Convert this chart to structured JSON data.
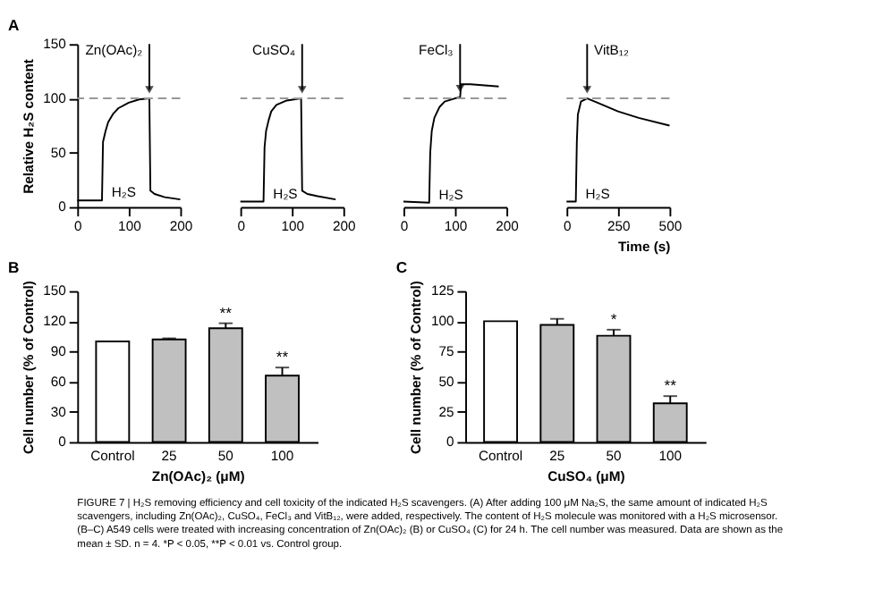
{
  "chart_data": [
    {
      "type": "line",
      "title": "A",
      "ylabel": "Relative H₂S content",
      "xlim": [
        0,
        200
      ],
      "xticks": [
        0,
        100,
        200
      ],
      "ylim": [
        0,
        150
      ],
      "yticks": [
        0,
        50,
        100,
        150
      ],
      "grid": false,
      "line_style": "solid",
      "marker": "none",
      "series": [
        {
          "color": "#000000",
          "x": [
            0,
            48,
            50,
            55,
            60,
            70,
            80,
            100,
            120,
            140,
            142,
            150,
            170,
            200
          ],
          "values": [
            6,
            6,
            60,
            70,
            78,
            86,
            91,
            96,
            99,
            100,
            15,
            12,
            9,
            7
          ]
        }
      ],
      "ref_lines": [
        {
          "axis": "y",
          "value": 100,
          "color": "#999999",
          "line_style": "dashed"
        }
      ],
      "annotations": [
        {
          "text": "Zn(OAc)₂",
          "x": 140,
          "y": 100
        },
        {
          "text": "H₂S",
          "x": 50,
          "y": 6
        }
      ]
    },
    {
      "type": "line",
      "xlim": [
        0,
        200
      ],
      "xticks": [
        0,
        100,
        200
      ],
      "ylim": [
        0,
        150
      ],
      "tick_labels": "x",
      "grid": false,
      "line_style": "solid",
      "marker": "none",
      "series": [
        {
          "color": "#000000",
          "x": [
            0,
            45,
            47,
            50,
            55,
            60,
            70,
            90,
            118,
            120,
            130,
            150,
            185
          ],
          "values": [
            5,
            5,
            55,
            70,
            80,
            88,
            94,
            98,
            100,
            15,
            12,
            10,
            7
          ]
        }
      ],
      "ref_lines": [
        {
          "axis": "y",
          "value": 100,
          "color": "#999999",
          "line_style": "dashed"
        }
      ],
      "annotations": [
        {
          "text": "CuSO₄",
          "x": 120,
          "y": 100
        },
        {
          "text": "H₂S",
          "x": 47,
          "y": 5
        }
      ]
    },
    {
      "type": "line",
      "xlim": [
        0,
        200
      ],
      "xticks": [
        0,
        100,
        200
      ],
      "ylim": [
        0,
        150
      ],
      "tick_labels": "x",
      "grid": false,
      "line_style": "solid",
      "marker": "none",
      "series": [
        {
          "color": "#000000",
          "x": [
            0,
            50,
            52,
            55,
            60,
            70,
            80,
            100,
            110,
            112,
            130,
            185
          ],
          "values": [
            5,
            4,
            50,
            70,
            82,
            92,
            97,
            100,
            101,
            113,
            113,
            111
          ]
        }
      ],
      "ref_lines": [
        {
          "axis": "y",
          "value": 100,
          "color": "#999999",
          "line_style": "dashed"
        }
      ],
      "annotations": [
        {
          "text": "FeCl₃",
          "x": 110,
          "y": 101
        },
        {
          "text": "H₂S",
          "x": 52,
          "y": 4
        }
      ]
    },
    {
      "type": "line",
      "xlabel": "Time (s)",
      "xlim": [
        0,
        500
      ],
      "xticks": [
        0,
        250,
        500
      ],
      "ylim": [
        0,
        150
      ],
      "tick_labels": "x",
      "grid": false,
      "line_style": "solid",
      "marker": "none",
      "series": [
        {
          "color": "#000000",
          "x": [
            0,
            45,
            50,
            55,
            70,
            100,
            150,
            250,
            350,
            500
          ],
          "values": [
            5,
            5,
            60,
            85,
            97,
            100,
            96,
            88,
            82,
            75
          ]
        }
      ],
      "ref_lines": [
        {
          "axis": "y",
          "value": 100,
          "color": "#999999",
          "line_style": "dashed"
        }
      ],
      "annotations": [
        {
          "text": "VitB₁₂",
          "x": 100,
          "y": 100
        },
        {
          "text": "H₂S",
          "x": 50,
          "y": 5
        }
      ]
    },
    {
      "type": "bar",
      "title": "B",
      "xlabel": "Zn(OAc)₂ (μM)",
      "ylabel": "Cell number (% of Control)",
      "categories": [
        "Control",
        "25",
        "50",
        "100"
      ],
      "values": [
        100,
        102,
        113,
        66
      ],
      "errors": [
        null,
        1,
        5,
        8
      ],
      "colors": [
        "#ffffff",
        "#c0c0c0",
        "#c0c0c0",
        "#c0c0c0"
      ],
      "ylim": [
        0,
        150
      ],
      "yticks": [
        0,
        30,
        60,
        90,
        120,
        150
      ],
      "grid": false,
      "annotations": [
        {
          "text": "**",
          "x": "50",
          "y": 118
        },
        {
          "text": "**",
          "x": "100",
          "y": 74
        }
      ]
    },
    {
      "type": "bar",
      "title": "C",
      "xlabel": "CuSO₄ (μM)",
      "ylabel": "Cell number (% of Control)",
      "categories": [
        "Control",
        "25",
        "50",
        "100"
      ],
      "values": [
        100,
        97,
        88,
        32
      ],
      "errors": [
        null,
        5,
        5,
        6
      ],
      "colors": [
        "#ffffff",
        "#c0c0c0",
        "#c0c0c0",
        "#c0c0c0"
      ],
      "ylim": [
        0,
        125
      ],
      "yticks": [
        0,
        25,
        50,
        75,
        100,
        125
      ],
      "grid": false,
      "annotations": [
        {
          "text": "*",
          "x": "50",
          "y": 93
        },
        {
          "text": "**",
          "x": "100",
          "y": 38
        }
      ]
    },
    {
      "type": "other",
      "annotations": [
        "FIGURE 7 | H₂S removing efficiency and cell toxicity of the indicated H₂S scavengers. (A) After adding 100 μM Na₂S, the same amount of indicated H₂S scavengers, including Zn(OAc)₂, CuSO₄, FeCl₃ and VitB₁₂, were added, respectively. The content of H₂S molecule was monitored with a H₂S microsensor. (B–C) A549 cells were treated with increasing concentration of Zn(OAc)₂ (B) or CuSO₄ (C) for 24 h. The cell number was measured. Data are shown as the mean ± SD. n = 4. *P < 0.05, **P < 0.01 vs. Control group."
      ]
    }
  ]
}
